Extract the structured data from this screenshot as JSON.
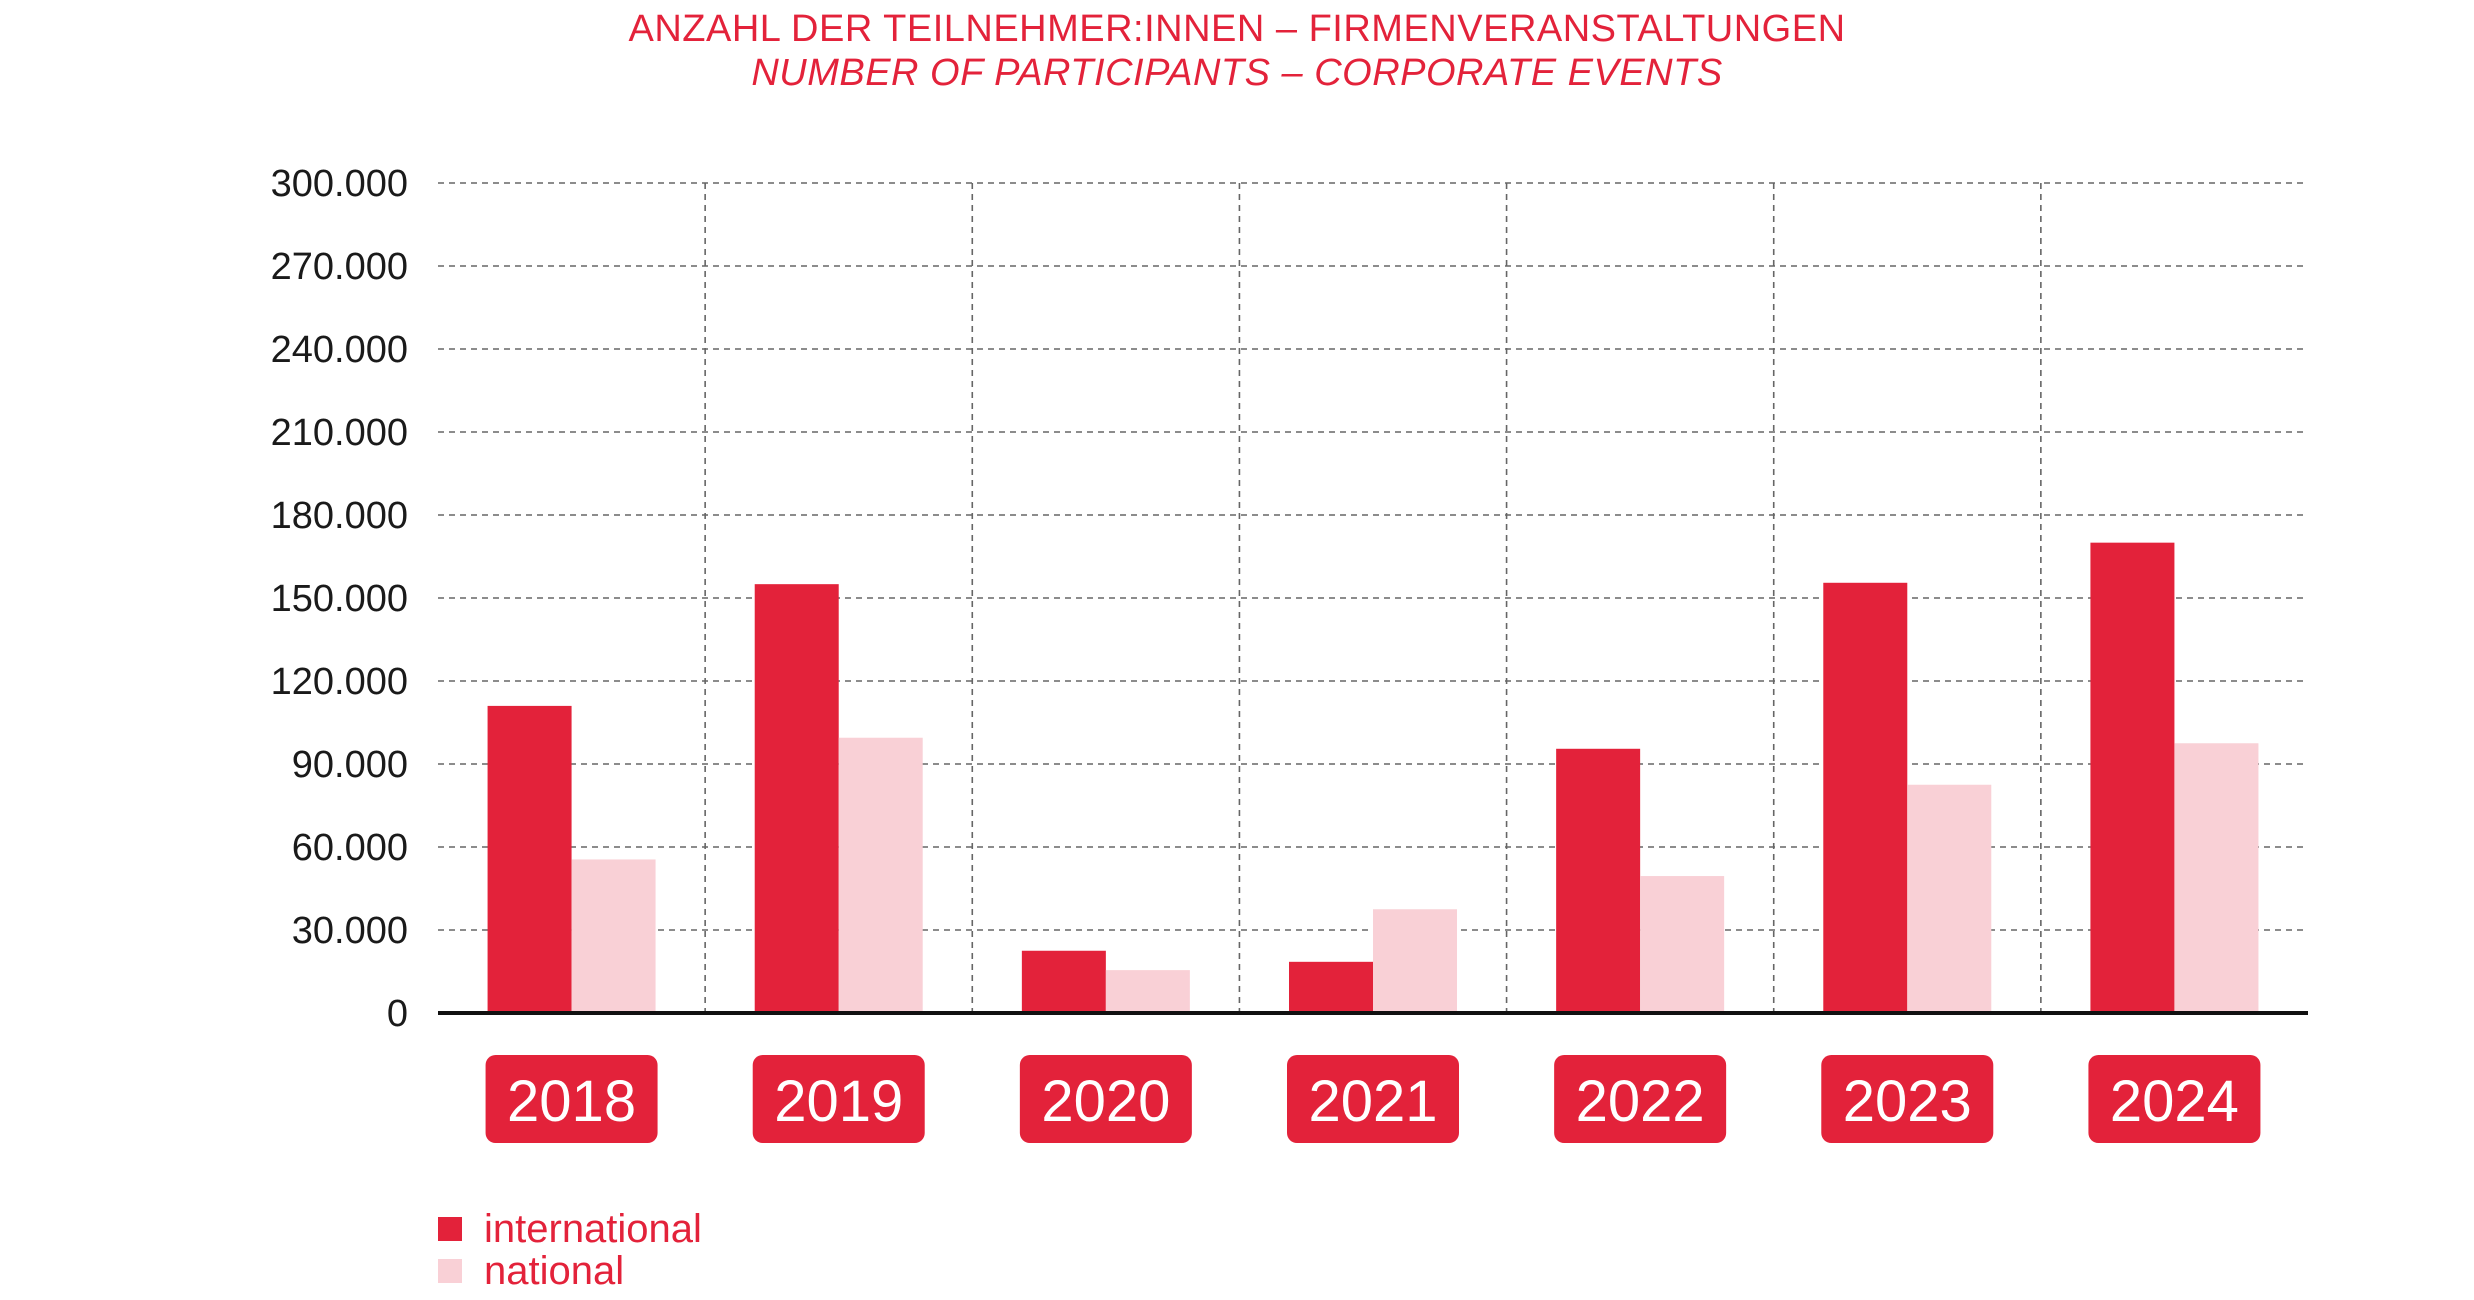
{
  "chart_data": {
    "type": "bar",
    "title": "ANZAHL DER TEILNEHMER:INNEN – FIRMENVERANSTALTUNGEN",
    "subtitle": "NUMBER OF PARTICIPANTS – CORPORATE EVENTS",
    "categories": [
      "2018",
      "2019",
      "2020",
      "2021",
      "2022",
      "2023",
      "2024"
    ],
    "series": [
      {
        "name": "international",
        "color": "#e3223a",
        "values": [
          111000,
          155000,
          22500,
          18500,
          95500,
          155500,
          170000
        ]
      },
      {
        "name": "national",
        "color": "#f9d0d6",
        "values": [
          55500,
          99500,
          15500,
          37500,
          49500,
          82500,
          97500
        ]
      }
    ],
    "y_ticks": [
      "0",
      "30.000",
      "60.000",
      "90.000",
      "120.000",
      "150.000",
      "180.000",
      "210.000",
      "240.000",
      "270.000",
      "300.000"
    ],
    "ylim": [
      0,
      300000
    ],
    "y_tick_step": 30000,
    "grid": true,
    "grid_style": "dashed",
    "legend_position": "bottom-left",
    "category_label_color": "#e3223a"
  }
}
